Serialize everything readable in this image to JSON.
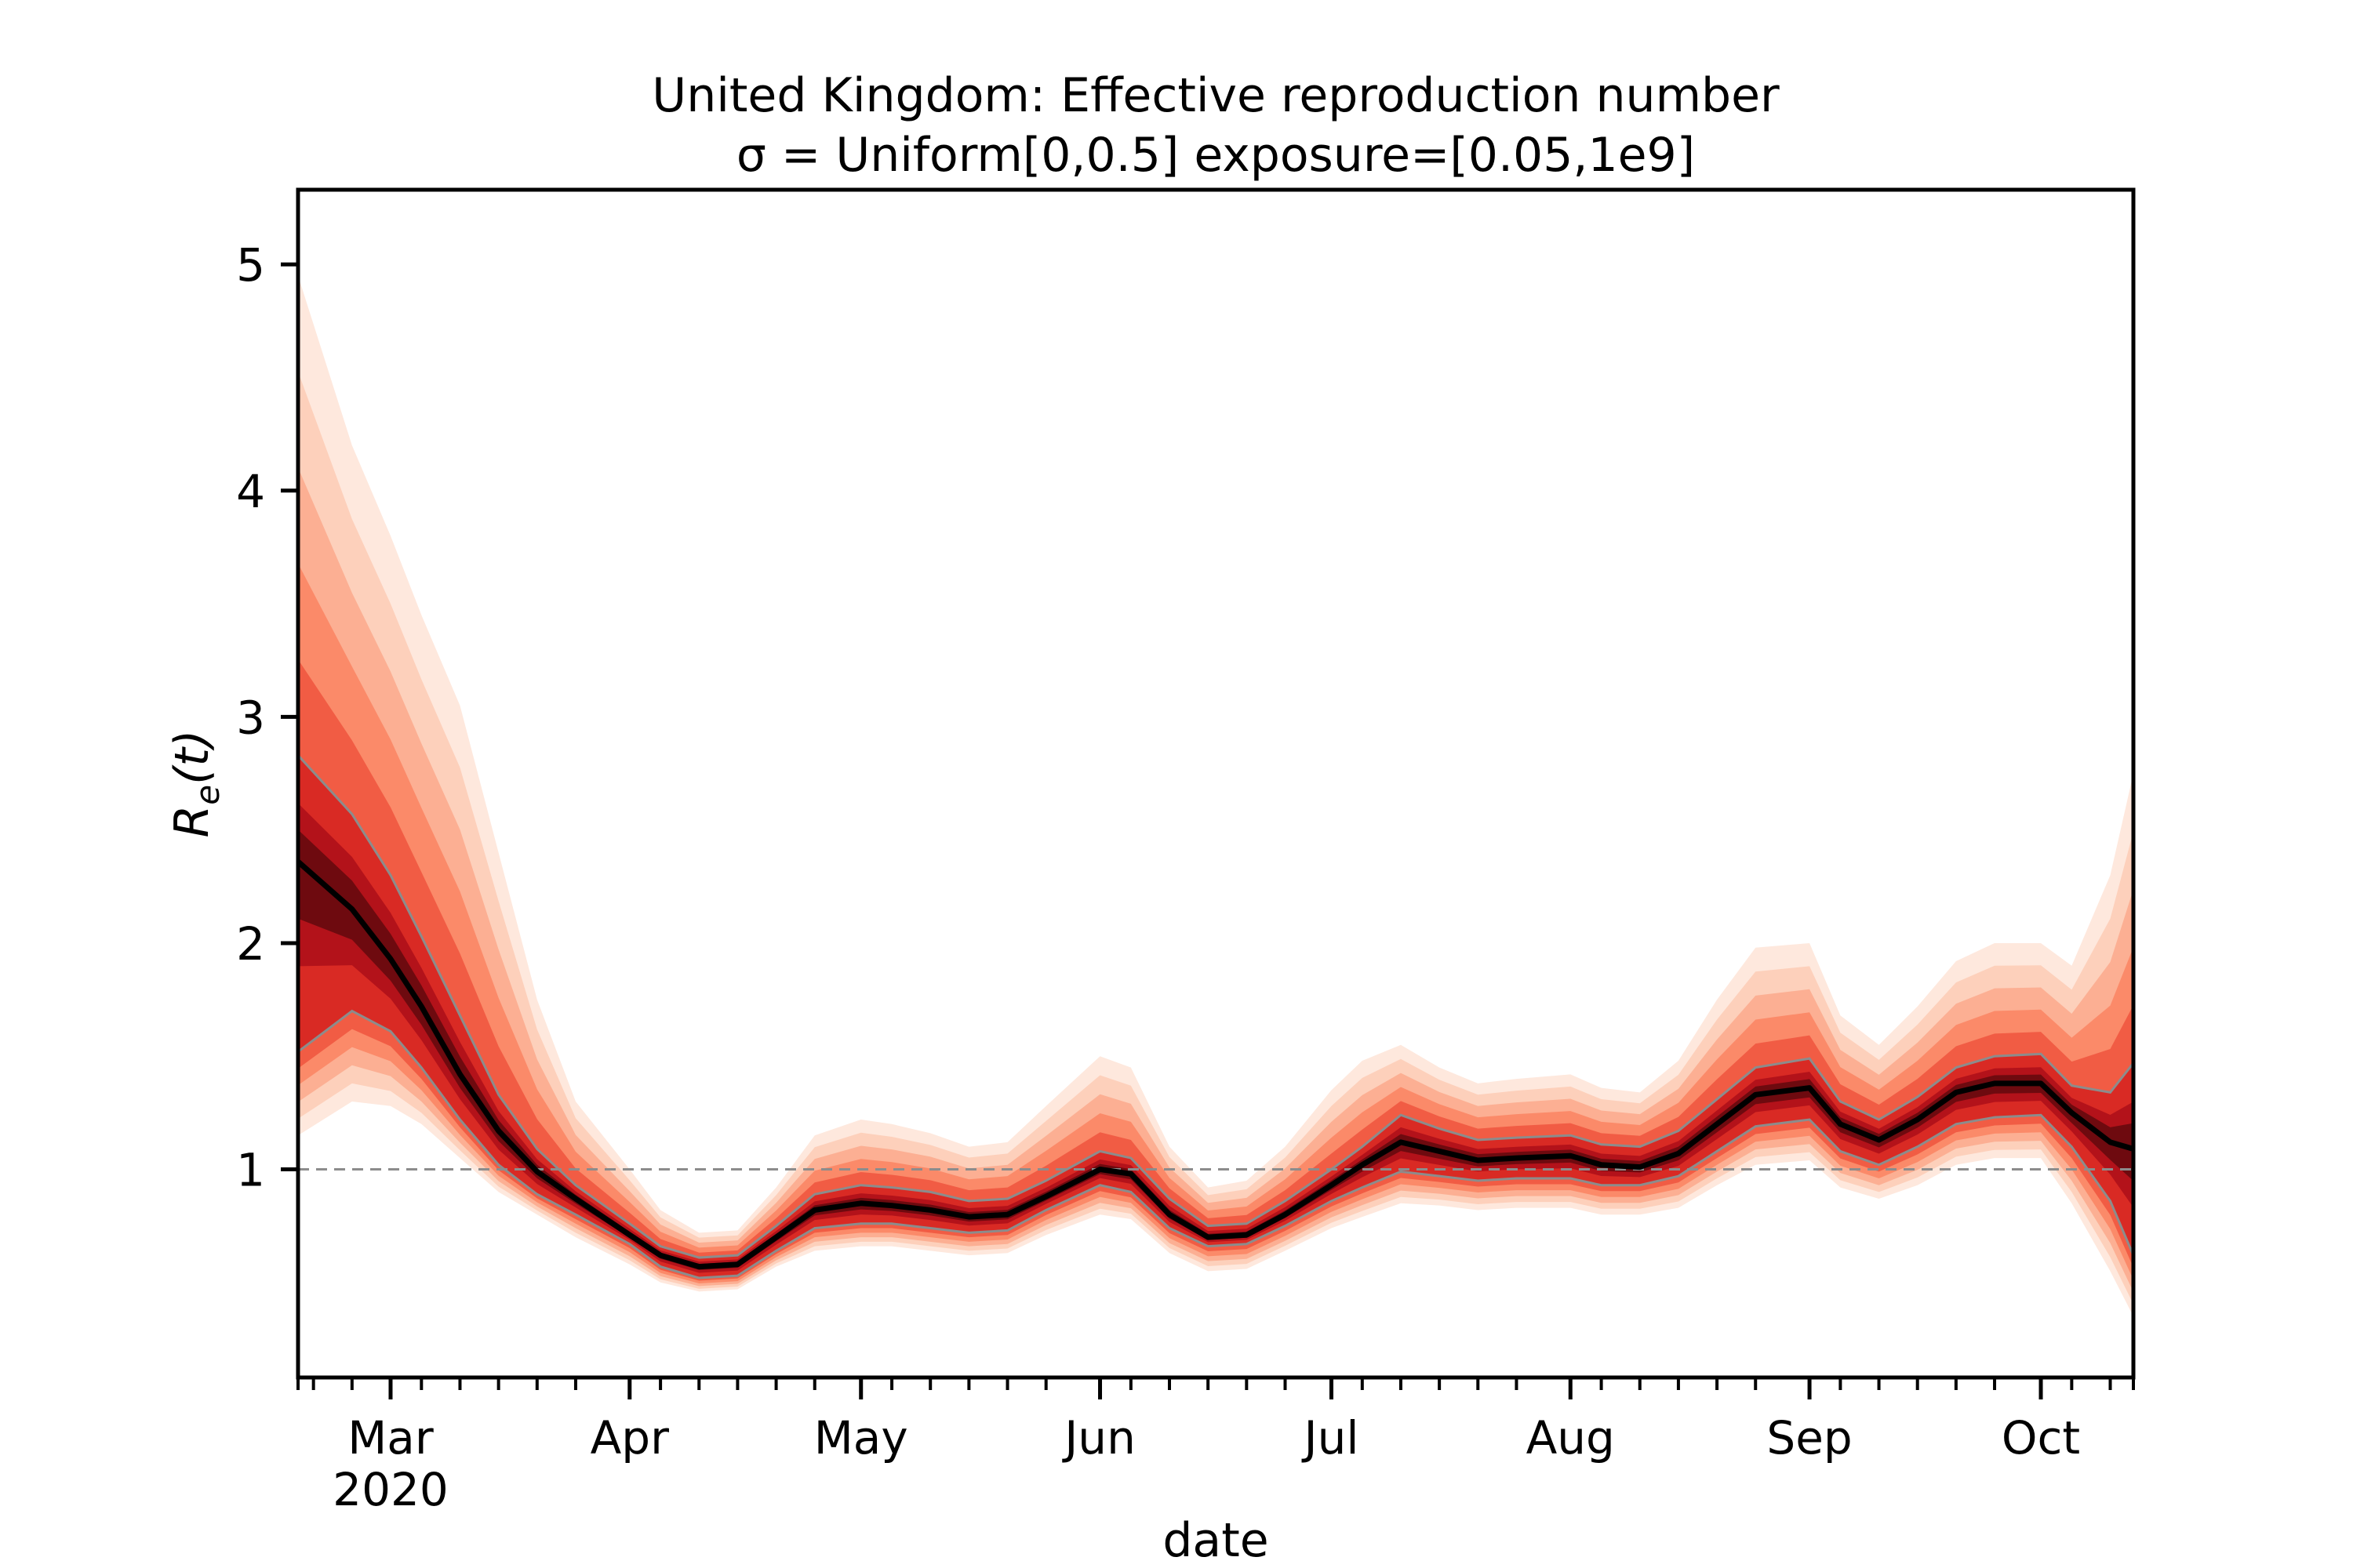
{
  "chart_data": {
    "type": "line",
    "title": "United Kingdom: Effective reproduction number",
    "subtitle": "σ = Uniform[0,0.5] exposure=[0.05,1e9]",
    "xlabel": "date",
    "ylabel": "R_e(t)",
    "xlim": [
      "2020-02-18",
      "2020-10-13"
    ],
    "ylim": [
      0.08,
      5.33
    ],
    "x_ticks": [
      {
        "date": "2020-03-01",
        "label": "Mar",
        "sublabel": "2020"
      },
      {
        "date": "2020-04-01",
        "label": "Apr",
        "sublabel": ""
      },
      {
        "date": "2020-05-01",
        "label": "May",
        "sublabel": ""
      },
      {
        "date": "2020-06-01",
        "label": "Jun",
        "sublabel": ""
      },
      {
        "date": "2020-07-01",
        "label": "Jul",
        "sublabel": ""
      },
      {
        "date": "2020-08-01",
        "label": "Aug",
        "sublabel": ""
      },
      {
        "date": "2020-09-01",
        "label": "Sep",
        "sublabel": ""
      },
      {
        "date": "2020-10-01",
        "label": "Oct",
        "sublabel": ""
      }
    ],
    "y_ticks": [
      1,
      2,
      3,
      4,
      5
    ],
    "reference_line": {
      "y": 1,
      "style": "dashed",
      "color": "#8c8c8c"
    },
    "grid": false,
    "colors": {
      "median": "#000000",
      "band_outer": "#fde6da",
      "band_mid": "#fb8a69",
      "band_inner": "#cb181d",
      "quantile": "#8c8c8c"
    },
    "series": [
      {
        "x": [
          "2020-02-18",
          "2020-02-25",
          "2020-03-01",
          "2020-03-05",
          "2020-03-10",
          "2020-03-15",
          "2020-03-20",
          "2020-03-25",
          "2020-04-01",
          "2020-04-05",
          "2020-04-10",
          "2020-04-15",
          "2020-04-20",
          "2020-04-25",
          "2020-05-01",
          "2020-05-05",
          "2020-05-10",
          "2020-05-15",
          "2020-05-20",
          "2020-05-25",
          "2020-06-01",
          "2020-06-05",
          "2020-06-10",
          "2020-06-15",
          "2020-06-20",
          "2020-06-25",
          "2020-07-01",
          "2020-07-05",
          "2020-07-10",
          "2020-07-15",
          "2020-07-20",
          "2020-07-25",
          "2020-08-01",
          "2020-08-05",
          "2020-08-10",
          "2020-08-15",
          "2020-08-20",
          "2020-08-25",
          "2020-09-01",
          "2020-09-05",
          "2020-09-10",
          "2020-09-15",
          "2020-09-20",
          "2020-09-25",
          "2020-10-01",
          "2020-10-05",
          "2020-10-10",
          "2020-10-13"
        ],
        "median": [
          2.36,
          2.15,
          1.93,
          1.72,
          1.42,
          1.17,
          0.99,
          0.87,
          0.71,
          0.62,
          0.57,
          0.58,
          0.7,
          0.82,
          0.85,
          0.84,
          0.82,
          0.79,
          0.8,
          0.88,
          1.0,
          0.98,
          0.8,
          0.7,
          0.71,
          0.8,
          0.93,
          1.02,
          1.12,
          1.08,
          1.04,
          1.05,
          1.06,
          1.02,
          1.01,
          1.07,
          1.2,
          1.33,
          1.36,
          1.2,
          1.13,
          1.22,
          1.34,
          1.38,
          1.38,
          1.25,
          1.12,
          1.09
        ],
        "lower": [
          1.52,
          1.7,
          1.61,
          1.45,
          1.22,
          1.02,
          0.89,
          0.8,
          0.67,
          0.57,
          0.52,
          0.53,
          0.64,
          0.74,
          0.76,
          0.76,
          0.74,
          0.72,
          0.73,
          0.82,
          0.93,
          0.9,
          0.74,
          0.66,
          0.67,
          0.75,
          0.86,
          0.92,
          0.99,
          0.97,
          0.95,
          0.96,
          0.96,
          0.93,
          0.93,
          0.97,
          1.08,
          1.19,
          1.22,
          1.08,
          1.02,
          1.1,
          1.2,
          1.23,
          1.24,
          1.1,
          0.86,
          0.62
        ],
        "upper": [
          2.83,
          2.57,
          2.3,
          2.03,
          1.68,
          1.33,
          1.09,
          0.93,
          0.76,
          0.66,
          0.61,
          0.62,
          0.75,
          0.89,
          0.93,
          0.92,
          0.9,
          0.86,
          0.87,
          0.95,
          1.08,
          1.05,
          0.87,
          0.75,
          0.76,
          0.86,
          1.0,
          1.1,
          1.24,
          1.18,
          1.13,
          1.14,
          1.15,
          1.11,
          1.1,
          1.17,
          1.31,
          1.45,
          1.49,
          1.3,
          1.22,
          1.32,
          1.45,
          1.5,
          1.51,
          1.37,
          1.34,
          1.47
        ],
        "outer_lower": [
          1.15,
          1.3,
          1.28,
          1.2,
          1.05,
          0.9,
          0.8,
          0.7,
          0.58,
          0.5,
          0.46,
          0.47,
          0.57,
          0.64,
          0.66,
          0.66,
          0.64,
          0.62,
          0.63,
          0.71,
          0.8,
          0.78,
          0.63,
          0.55,
          0.56,
          0.64,
          0.74,
          0.79,
          0.85,
          0.84,
          0.82,
          0.83,
          0.83,
          0.8,
          0.8,
          0.83,
          0.93,
          1.02,
          1.04,
          0.92,
          0.87,
          0.93,
          1.02,
          1.05,
          1.05,
          0.85,
          0.55,
          0.35
        ],
        "outer_upper": [
          4.95,
          4.2,
          3.8,
          3.45,
          3.05,
          2.4,
          1.75,
          1.3,
          1.0,
          0.82,
          0.72,
          0.73,
          0.92,
          1.15,
          1.22,
          1.2,
          1.16,
          1.1,
          1.12,
          1.28,
          1.5,
          1.45,
          1.1,
          0.92,
          0.95,
          1.1,
          1.35,
          1.48,
          1.55,
          1.45,
          1.38,
          1.4,
          1.42,
          1.36,
          1.34,
          1.48,
          1.75,
          1.98,
          2.0,
          1.68,
          1.55,
          1.72,
          1.92,
          2.0,
          2.0,
          1.9,
          2.3,
          2.75
        ]
      }
    ]
  }
}
